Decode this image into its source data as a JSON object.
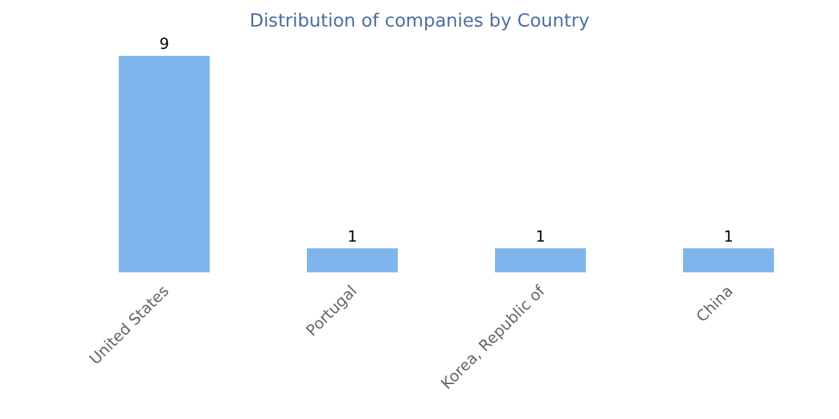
{
  "chart_data": {
    "type": "bar",
    "title": "Distribution of companies by Country",
    "categories": [
      "United States",
      "Portugal",
      "Korea, Republic of",
      "China"
    ],
    "values": [
      9,
      1,
      1,
      1
    ],
    "color": "#7eb5ec",
    "data_labels": true
  }
}
